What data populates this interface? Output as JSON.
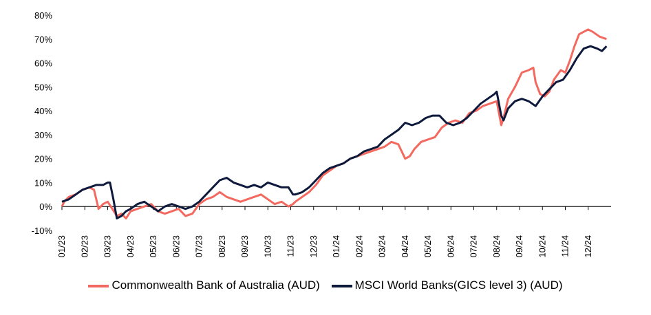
{
  "chart_data": {
    "type": "line",
    "title": "",
    "xlabel": "",
    "ylabel": "",
    "ylim": [
      -10,
      80
    ],
    "yticks": [
      -10,
      0,
      10,
      20,
      30,
      40,
      50,
      60,
      70,
      80
    ],
    "ytick_labels": [
      "-10%",
      "0%",
      "10%",
      "20%",
      "30%",
      "40%",
      "50%",
      "60%",
      "70%",
      "80%"
    ],
    "x_month_labels": [
      "01/23",
      "02/23",
      "03/23",
      "04/23",
      "05/23",
      "06/23",
      "07/23",
      "08/23",
      "09/23",
      "10/23",
      "11/23",
      "12/23",
      "01/24",
      "02/24",
      "03/24",
      "04/24",
      "05/24",
      "06/24",
      "07/24",
      "08/24",
      "09/24",
      "10/24",
      "11/24",
      "12/24"
    ],
    "legend_position": "bottom",
    "series": [
      {
        "name": "Commonwealth Bank of Australia (AUD)",
        "color": "#F4695F",
        "x": [
          0,
          0.1,
          0.3,
          0.6,
          0.9,
          1.2,
          1.4,
          1.6,
          1.8,
          2.0,
          2.2,
          2.4,
          2.6,
          2.8,
          3.0,
          3.3,
          3.6,
          3.9,
          4.2,
          4.5,
          4.8,
          5.1,
          5.4,
          5.7,
          6.0,
          6.3,
          6.6,
          6.9,
          7.2,
          7.5,
          7.8,
          8.1,
          8.4,
          8.7,
          9.0,
          9.3,
          9.6,
          9.9,
          10.1,
          10.2,
          10.5,
          10.8,
          11.1,
          11.4,
          11.7,
          12.0,
          12.3,
          12.6,
          12.9,
          13.2,
          13.5,
          13.8,
          14.1,
          14.4,
          14.7,
          15.0,
          15.2,
          15.4,
          15.7,
          16.0,
          16.3,
          16.6,
          16.9,
          17.2,
          17.5,
          17.8,
          18.1,
          18.4,
          18.7,
          19.0,
          19.2,
          19.3,
          19.5,
          19.8,
          20.1,
          20.4,
          20.6,
          20.7,
          20.9,
          21.1,
          21.3,
          21.5,
          21.8,
          22.0,
          22.2,
          22.4,
          22.6,
          22.8,
          23.0,
          23.2,
          23.5,
          23.8
        ],
        "values": [
          0,
          2,
          4,
          5,
          7,
          8,
          7,
          -1,
          1,
          2,
          -1,
          -4,
          -3,
          -5,
          -2,
          -1,
          0,
          1,
          -2,
          -3,
          -2,
          -1,
          -4,
          -3,
          1,
          3,
          4,
          6,
          4,
          3,
          2,
          3,
          4,
          5,
          3,
          1,
          2,
          0,
          1,
          2,
          4,
          6,
          9,
          13,
          15,
          17,
          18,
          20,
          21,
          22,
          23,
          24,
          25,
          27,
          26,
          20,
          21,
          24,
          27,
          28,
          29,
          33,
          35,
          36,
          35,
          39,
          40,
          42,
          43,
          44,
          34,
          37,
          45,
          50,
          56,
          57,
          58,
          52,
          47,
          46,
          48,
          53,
          57,
          56,
          61,
          67,
          72,
          73,
          74,
          73,
          71,
          70
        ]
      },
      {
        "name": "MSCI World Banks(GICS level 3) (AUD)",
        "color": "#0E1A3C",
        "x": [
          0,
          0.3,
          0.6,
          0.9,
          1.2,
          1.5,
          1.8,
          2.0,
          2.1,
          2.25,
          2.4,
          2.6,
          2.8,
          3.0,
          3.3,
          3.6,
          3.9,
          4.2,
          4.5,
          4.8,
          5.1,
          5.4,
          5.7,
          6.0,
          6.3,
          6.6,
          6.9,
          7.2,
          7.5,
          7.8,
          8.1,
          8.4,
          8.7,
          9.0,
          9.3,
          9.6,
          9.9,
          10.1,
          10.2,
          10.5,
          10.8,
          11.1,
          11.4,
          11.7,
          12.0,
          12.3,
          12.6,
          12.9,
          13.2,
          13.5,
          13.8,
          14.1,
          14.4,
          14.7,
          15.0,
          15.3,
          15.6,
          15.9,
          16.2,
          16.5,
          16.8,
          17.1,
          17.4,
          17.7,
          18.0,
          18.3,
          18.6,
          18.9,
          19.0,
          19.2,
          19.3,
          19.5,
          19.8,
          20.1,
          20.4,
          20.7,
          21.0,
          21.3,
          21.6,
          21.9,
          22.2,
          22.5,
          22.8,
          23.1,
          23.4,
          23.6,
          23.8
        ],
        "values": [
          2,
          3,
          5,
          7,
          8,
          9,
          9,
          10,
          10,
          3,
          -5,
          -4,
          -2,
          -1,
          1,
          2,
          0,
          -2,
          0,
          1,
          0,
          -1,
          0,
          2,
          5,
          8,
          11,
          12,
          10,
          9,
          8,
          9,
          8,
          10,
          9,
          8,
          8,
          5,
          5,
          6,
          8,
          11,
          14,
          16,
          17,
          18,
          20,
          21,
          23,
          24,
          25,
          28,
          30,
          32,
          35,
          34,
          35,
          37,
          38,
          38,
          35,
          34,
          35,
          37,
          40,
          43,
          45,
          47,
          48,
          38,
          36,
          41,
          44,
          45,
          44,
          42,
          46,
          49,
          52,
          53,
          57,
          62,
          66,
          67,
          66,
          65,
          67
        ]
      }
    ]
  }
}
